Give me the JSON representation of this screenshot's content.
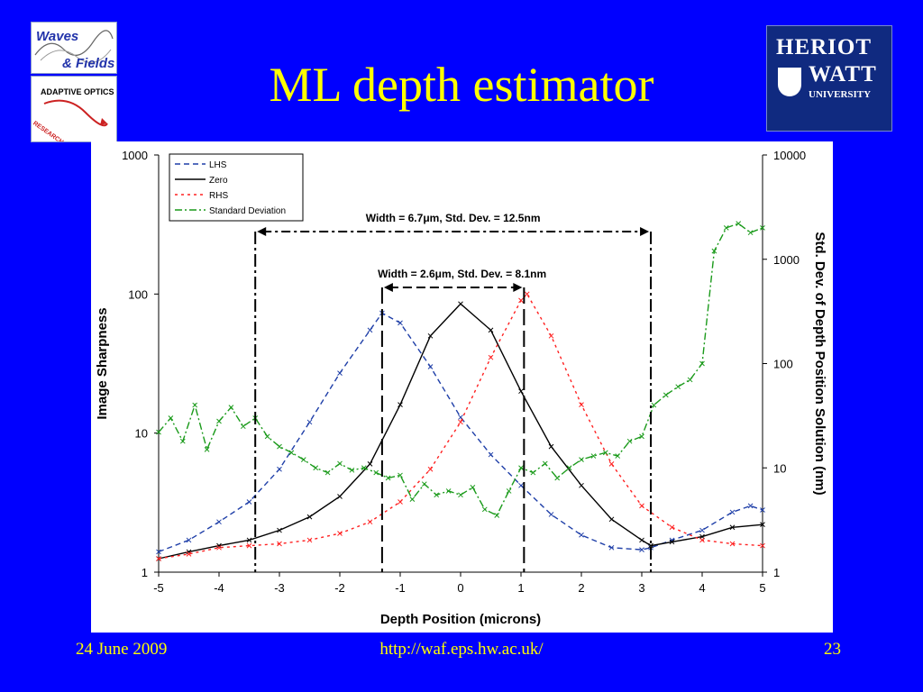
{
  "slide": {
    "title": "ML depth estimator",
    "footer_date": "24 June 2009",
    "footer_url": "http://waf.eps.hw.ac.uk/",
    "page_number": "23",
    "background_color": "#0000ff",
    "title_color": "#ffff00"
  },
  "logos": {
    "waves_fields_line1": "Waves",
    "waves_fields_line2": "& Fields",
    "adaptive_optics": "ADAPTIVE OPTICS",
    "research": "RESEARCH",
    "heriot_watt_line1": "HERIOT",
    "heriot_watt_line2": "WATT",
    "heriot_watt_line3": "UNIVERSITY"
  },
  "chart_data": {
    "type": "line",
    "xlabel": "Depth Position (microns)",
    "ylabel": "Image Sharpness",
    "y2label": "Std. Dev. of Depth Position Solution (nm)",
    "xlim": [
      -5,
      5
    ],
    "ylim": [
      1,
      1000
    ],
    "y2lim": [
      1,
      10000
    ],
    "yscale": "log",
    "y2scale": "log",
    "x_ticks": [
      "-5",
      "-4",
      "-3",
      "-2",
      "-1",
      "0",
      "1",
      "2",
      "3",
      "4",
      "5"
    ],
    "y_ticks": [
      "1",
      "10",
      "100",
      "1000"
    ],
    "y2_ticks": [
      "1",
      "10",
      "100",
      "1000",
      "10000"
    ],
    "legend_position": "top-left",
    "annotations": {
      "wide_width": "Width = 6.7μm, Std. Dev. = 12.5nm",
      "narrow_width": "Width = 2.6μm, Std. Dev. = 8.1nm",
      "wide_range": [
        -3.4,
        3.15
      ],
      "narrow_range": [
        -1.3,
        1.05
      ]
    },
    "series": [
      {
        "name": "LHS",
        "color": "#1f3fa8",
        "axis": "left",
        "dash": "6,4",
        "x": [
          -5,
          -4.5,
          -4,
          -3.5,
          -3,
          -2.5,
          -2,
          -1.5,
          -1.3,
          -1,
          -0.5,
          0,
          0.5,
          1,
          1.5,
          2,
          2.5,
          3,
          3.15,
          3.5,
          4,
          4.5,
          4.8,
          5
        ],
        "y": [
          1.4,
          1.7,
          2.3,
          3.2,
          5.5,
          12,
          27,
          55,
          73,
          62,
          30,
          13,
          7,
          4.2,
          2.6,
          1.85,
          1.5,
          1.45,
          1.5,
          1.7,
          2.0,
          2.7,
          3.0,
          2.8
        ]
      },
      {
        "name": "Zero",
        "color": "#000000",
        "axis": "left",
        "dash": "",
        "x": [
          -5,
          -4.5,
          -4,
          -3.5,
          -3,
          -2.5,
          -2,
          -1.5,
          -1,
          -0.5,
          0,
          0.5,
          1,
          1.5,
          2,
          2.5,
          3,
          3.15,
          3.5,
          4,
          4.5,
          5
        ],
        "y": [
          1.25,
          1.4,
          1.55,
          1.7,
          2.0,
          2.5,
          3.5,
          6,
          16,
          50,
          85,
          55,
          20,
          8,
          4.2,
          2.4,
          1.7,
          1.55,
          1.65,
          1.8,
          2.1,
          2.2
        ]
      },
      {
        "name": "RHS",
        "color": "#ff2020",
        "axis": "left",
        "dash": "3,4",
        "x": [
          -5,
          -4.5,
          -4,
          -3.5,
          -3,
          -2.5,
          -2,
          -1.5,
          -1,
          -0.5,
          0,
          0.5,
          1,
          1.1,
          1.5,
          2,
          2.5,
          3,
          3.5,
          4,
          4.5,
          5
        ],
        "y": [
          1.25,
          1.35,
          1.5,
          1.55,
          1.6,
          1.7,
          1.9,
          2.3,
          3.2,
          5.5,
          12,
          35,
          90,
          100,
          50,
          16,
          6,
          3.0,
          2.1,
          1.7,
          1.6,
          1.55
        ]
      },
      {
        "name": "Standard Deviation",
        "color": "#1a9a1a",
        "axis": "right",
        "dash": "8,3,2,3",
        "x": [
          -5,
          -4.8,
          -4.6,
          -4.4,
          -4.2,
          -4,
          -3.8,
          -3.6,
          -3.4,
          -3.2,
          -3,
          -2.8,
          -2.6,
          -2.4,
          -2.2,
          -2,
          -1.8,
          -1.6,
          -1.4,
          -1.2,
          -1,
          -0.8,
          -0.6,
          -0.4,
          -0.2,
          0,
          0.2,
          0.4,
          0.6,
          0.8,
          1,
          1.2,
          1.4,
          1.6,
          1.8,
          2,
          2.2,
          2.4,
          2.6,
          2.8,
          3,
          3.2,
          3.4,
          3.6,
          3.8,
          4,
          4.2,
          4.4,
          4.6,
          4.8,
          5
        ],
        "y": [
          22,
          30,
          18,
          40,
          15,
          28,
          38,
          25,
          30,
          20,
          16,
          14,
          12,
          10,
          9,
          11,
          9.5,
          10,
          9,
          8,
          8.5,
          5,
          7,
          5.5,
          6,
          5.5,
          6.5,
          4,
          3.5,
          6,
          10,
          9,
          11,
          8,
          10,
          12,
          13,
          14,
          13,
          18,
          20,
          40,
          50,
          60,
          70,
          100,
          1200,
          2000,
          2200,
          1800,
          2000
        ]
      }
    ]
  }
}
